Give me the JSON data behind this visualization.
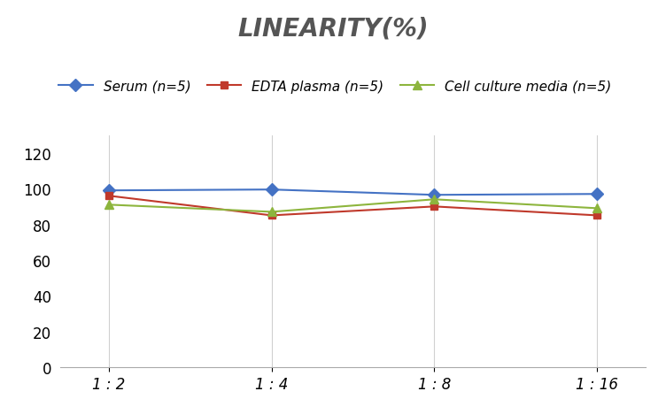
{
  "title": "LINEARITY(%)",
  "x_labels": [
    "1 : 2",
    "1 : 4",
    "1 : 8",
    "1 : 16"
  ],
  "x_positions": [
    0,
    1,
    2,
    3
  ],
  "series": [
    {
      "label": "Serum (n=5)",
      "values": [
        99,
        99.5,
        96.5,
        97
      ],
      "color": "#4472C4",
      "marker": "D",
      "marker_size": 7,
      "linewidth": 1.5
    },
    {
      "label": "EDTA plasma (n=5)",
      "values": [
        96,
        85,
        90,
        85
      ],
      "color": "#C0392B",
      "marker": "s",
      "marker_size": 6,
      "linewidth": 1.5
    },
    {
      "label": "Cell culture media (n=5)",
      "values": [
        91,
        87,
        94,
        89
      ],
      "color": "#8DB53D",
      "marker": "^",
      "marker_size": 7,
      "linewidth": 1.5
    }
  ],
  "ylim": [
    0,
    130
  ],
  "yticks": [
    0,
    20,
    40,
    60,
    80,
    100,
    120
  ],
  "background_color": "#ffffff",
  "grid_color": "#d0d0d0",
  "title_fontsize": 20,
  "legend_fontsize": 11,
  "tick_fontsize": 12
}
